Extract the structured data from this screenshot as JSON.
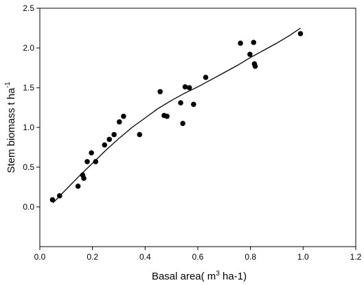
{
  "chart_data": {
    "type": "scatter",
    "xlabel_main": "Basal area( m",
    "xlabel_sup": "3",
    "xlabel_tail": " ha-1)",
    "ylabel_main": "Stem  biomass t ha",
    "ylabel_sup": "-1",
    "xlim": [
      0.0,
      1.2
    ],
    "ylim": [
      -0.5,
      2.5
    ],
    "xticks": [
      "0.0",
      "0.2",
      "0.4",
      "0.6",
      "0.8",
      "1.0",
      "1.2"
    ],
    "yticks": [
      "0.0",
      "0.5",
      "1.0",
      "1.5",
      "2.0",
      "2.5"
    ],
    "xtick_values": [
      0.0,
      0.2,
      0.4,
      0.6,
      0.8,
      1.0,
      1.2
    ],
    "ytick_values": [
      0.0,
      0.5,
      1.0,
      1.5,
      2.0,
      2.5
    ],
    "grid": false,
    "points": [
      {
        "x": 0.048,
        "y": 0.09
      },
      {
        "x": 0.075,
        "y": 0.14
      },
      {
        "x": 0.145,
        "y": 0.26
      },
      {
        "x": 0.163,
        "y": 0.4
      },
      {
        "x": 0.167,
        "y": 0.36
      },
      {
        "x": 0.18,
        "y": 0.57
      },
      {
        "x": 0.196,
        "y": 0.68
      },
      {
        "x": 0.212,
        "y": 0.57
      },
      {
        "x": 0.246,
        "y": 0.78
      },
      {
        "x": 0.264,
        "y": 0.85
      },
      {
        "x": 0.282,
        "y": 0.91
      },
      {
        "x": 0.302,
        "y": 1.07
      },
      {
        "x": 0.318,
        "y": 1.14
      },
      {
        "x": 0.379,
        "y": 0.91
      },
      {
        "x": 0.457,
        "y": 1.45
      },
      {
        "x": 0.472,
        "y": 1.15
      },
      {
        "x": 0.483,
        "y": 1.14
      },
      {
        "x": 0.535,
        "y": 1.31
      },
      {
        "x": 0.543,
        "y": 1.05
      },
      {
        "x": 0.552,
        "y": 1.51
      },
      {
        "x": 0.568,
        "y": 1.5
      },
      {
        "x": 0.584,
        "y": 1.29
      },
      {
        "x": 0.63,
        "y": 1.63
      },
      {
        "x": 0.762,
        "y": 2.06
      },
      {
        "x": 0.798,
        "y": 1.92
      },
      {
        "x": 0.812,
        "y": 2.07
      },
      {
        "x": 0.815,
        "y": 1.8
      },
      {
        "x": 0.818,
        "y": 1.77
      },
      {
        "x": 0.99,
        "y": 2.18
      }
    ],
    "fit_line": {
      "x": [
        0.05,
        0.1,
        0.15,
        0.2,
        0.25,
        0.3,
        0.35,
        0.4,
        0.45,
        0.5,
        0.55,
        0.6,
        0.65,
        0.7,
        0.75,
        0.8,
        0.85,
        0.9,
        0.95,
        0.99
      ],
      "y": [
        0.05,
        0.22,
        0.39,
        0.55,
        0.71,
        0.86,
        1.0,
        1.12,
        1.24,
        1.34,
        1.43,
        1.51,
        1.6,
        1.69,
        1.78,
        1.88,
        1.97,
        2.06,
        2.16,
        2.25
      ]
    }
  }
}
